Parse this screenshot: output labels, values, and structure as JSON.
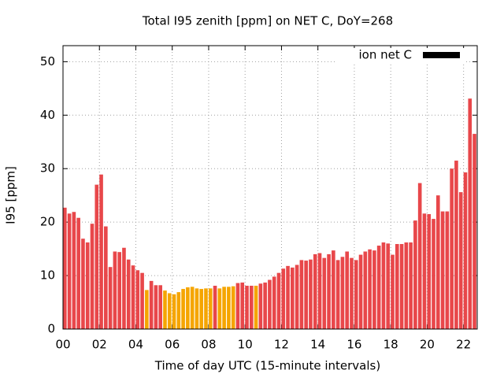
{
  "chart_data": {
    "type": "bar",
    "title": "Total I95 zenith [ppm] on NET C, DoY=268",
    "xlabel": "Time of day UTC (15-minute intervals)",
    "ylabel": "I95 [ppm]",
    "series": [
      {
        "name": "ion net C",
        "color": "#000000",
        "x": [
          0,
          0.25,
          0.5,
          0.75,
          1,
          1.25,
          1.5,
          1.75,
          2,
          2.25,
          2.5,
          2.75,
          3,
          3.25,
          3.5,
          3.75,
          4,
          4.25,
          4.5,
          4.75,
          5,
          5.25,
          5.5,
          5.75,
          6,
          6.25,
          6.5,
          6.75,
          7,
          7.25,
          7.5,
          7.75,
          8,
          8.25,
          8.5,
          8.75,
          9,
          9.25,
          9.5,
          9.75,
          10,
          10.25,
          10.5,
          10.75,
          11,
          11.25,
          11.5,
          11.75,
          12,
          12.25,
          12.5,
          12.75,
          13,
          13.25,
          13.5,
          13.75,
          14,
          14.25,
          14.5,
          14.75,
          15,
          15.25,
          15.5,
          15.75,
          16,
          16.25,
          16.5,
          16.75,
          17,
          17.25,
          17.5,
          17.75,
          18,
          18.25,
          18.5,
          18.75,
          19,
          19.25,
          19.5,
          19.75,
          20,
          20.25,
          20.5,
          20.75,
          21,
          21.25,
          21.5,
          21.75,
          22,
          22.25,
          22.5
        ],
        "values": [
          22.7,
          21.6,
          21.9,
          20.8,
          16.9,
          16.2,
          19.7,
          27,
          28.9,
          19.2,
          11.6,
          14.5,
          14.4,
          15.2,
          13,
          11.9,
          11,
          10.5,
          7.3,
          9,
          8.2,
          8.2,
          7.2,
          6.7,
          6.5,
          6.9,
          7.5,
          7.8,
          7.9,
          7.6,
          7.5,
          7.6,
          7.6,
          8.1,
          7.6,
          7.9,
          7.9,
          8,
          8.6,
          8.7,
          8.1,
          8.1,
          8.1,
          8.5,
          8.7,
          9.2,
          9.8,
          10.5,
          11.3,
          11.8,
          11.5,
          12,
          12.9,
          12.8,
          13,
          14,
          14.2,
          13.3,
          14,
          14.7,
          12.9,
          13.5,
          14.5,
          13.3,
          12.9,
          13.9,
          14.5,
          14.9,
          14.7,
          15.6,
          16.2,
          16,
          13.9,
          15.9,
          15.9,
          16.2,
          16.2,
          20.3,
          27.3,
          21.6,
          21.5,
          20.6,
          25,
          22,
          22,
          30,
          31.5,
          25.6,
          29.3,
          43.1,
          36.5
        ],
        "colors": [
          "#e8474a",
          "#e8474a",
          "#e8474a",
          "#e8474a",
          "#e8474a",
          "#e8474a",
          "#e8474a",
          "#e8474a",
          "#e8474a",
          "#e8474a",
          "#e8474a",
          "#e8474a",
          "#e8474a",
          "#e8474a",
          "#e8474a",
          "#e8474a",
          "#e8474a",
          "#e8474a",
          "#f5a500",
          "#e8474a",
          "#e8474a",
          "#e8474a",
          "#f5a500",
          "#f5a500",
          "#f5a500",
          "#f5a500",
          "#f5a500",
          "#f5a500",
          "#f5a500",
          "#f5a500",
          "#f5a500",
          "#f5a500",
          "#f5a500",
          "#e8474a",
          "#f5a500",
          "#f5a500",
          "#f5a500",
          "#f5a500",
          "#e8474a",
          "#e8474a",
          "#e8474a",
          "#e8474a",
          "#f5a500",
          "#e8474a",
          "#e8474a",
          "#e8474a",
          "#e8474a",
          "#e8474a",
          "#e8474a",
          "#e8474a",
          "#e8474a",
          "#e8474a",
          "#e8474a",
          "#e8474a",
          "#e8474a",
          "#e8474a",
          "#e8474a",
          "#e8474a",
          "#e8474a",
          "#e8474a",
          "#e8474a",
          "#e8474a",
          "#e8474a",
          "#e8474a",
          "#e8474a",
          "#e8474a",
          "#e8474a",
          "#e8474a",
          "#e8474a",
          "#e8474a",
          "#e8474a",
          "#e8474a",
          "#e8474a",
          "#e8474a",
          "#e8474a",
          "#e8474a",
          "#e8474a",
          "#e8474a",
          "#e8474a",
          "#e8474a",
          "#e8474a",
          "#e8474a",
          "#e8474a",
          "#e8474a",
          "#e8474a",
          "#e8474a",
          "#e8474a",
          "#e8474a",
          "#e8474a",
          "#e8474a",
          "#e8474a"
        ]
      }
    ],
    "xlim": [
      0,
      22.75
    ],
    "xticks": [
      {
        "value": 0,
        "label": "00"
      },
      {
        "value": 2,
        "label": "02"
      },
      {
        "value": 4,
        "label": "04"
      },
      {
        "value": 6,
        "label": "06"
      },
      {
        "value": 8,
        "label": "08"
      },
      10,
      12,
      14,
      16,
      18,
      20,
      22
    ],
    "ylim": [
      0,
      53
    ],
    "yticks": [
      0,
      10,
      20,
      30,
      40,
      50
    ],
    "grid": true,
    "legend": "top-right"
  }
}
